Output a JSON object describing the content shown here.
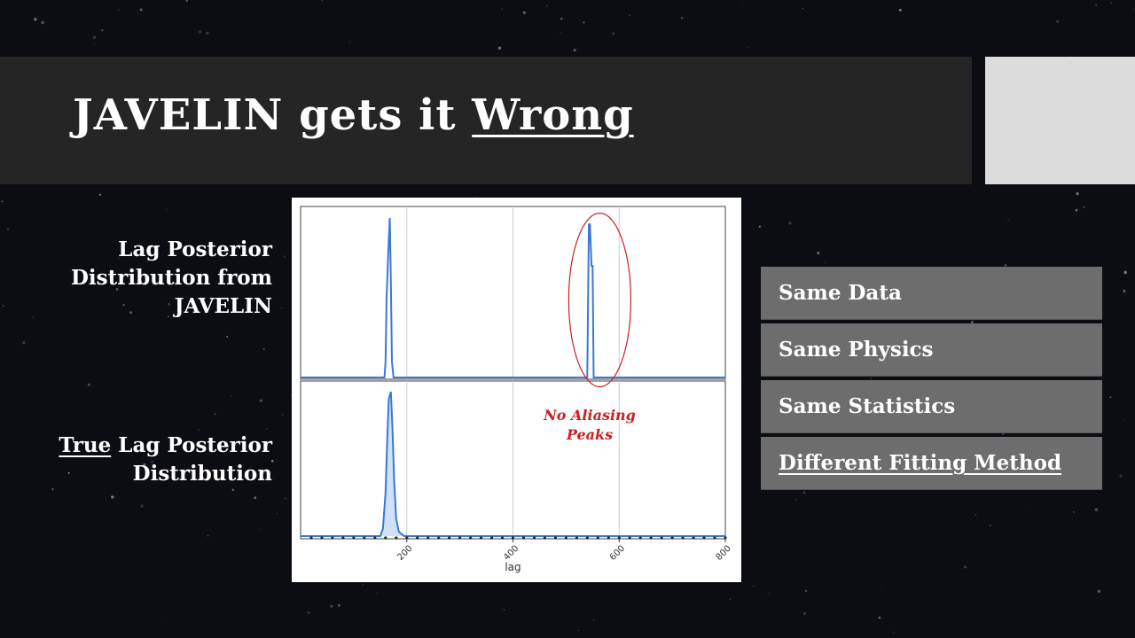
{
  "slide": {
    "title_plain": "JAVELIN gets it ",
    "title_underlined": "Wrong",
    "label_top": "Lag Posterior Distribution from JAVELIN",
    "label_bottom_underlined": "True",
    "label_bottom_rest": " Lag Posterior Distribution",
    "boxes": [
      {
        "label": "Same Data",
        "underlined": false
      },
      {
        "label": "Same Physics",
        "underlined": false
      },
      {
        "label": "Same Statistics",
        "underlined": false
      },
      {
        "label": "Different Fitting Method",
        "underlined": true
      }
    ]
  },
  "colors": {
    "accent_red": "#cc1f1f",
    "series_blue": "#3b78d4",
    "title_bar": "#252525",
    "box_gray": "#6d6d6d"
  },
  "chart_data": {
    "type": "line",
    "xlabel": "lag",
    "xlim": [
      0,
      800
    ],
    "xticks": [
      200,
      400,
      600,
      800
    ],
    "grid": true,
    "annotation": {
      "text_line1": "No Aliasing",
      "text_line2": "Peaks",
      "color": "#cc1f1f"
    },
    "top_panel": {
      "name": "",
      "x": [
        0,
        158,
        160,
        162,
        165,
        168,
        170,
        172,
        175,
        180,
        182,
        540,
        543,
        545,
        548,
        550,
        552,
        556,
        800
      ],
      "y": [
        0,
        0,
        0.1,
        0.5,
        0.78,
        1.0,
        0.6,
        0.1,
        0,
        0,
        0,
        0,
        0.96,
        0.96,
        0.7,
        0.7,
        0,
        0,
        0
      ],
      "ylim": [
        0,
        1.05
      ],
      "highlight_x_range": [
        505,
        622
      ]
    },
    "bottom_panel": {
      "name": "",
      "x": [
        0,
        150,
        155,
        160,
        163,
        166,
        170,
        173,
        176,
        180,
        185,
        195,
        800
      ],
      "y": [
        0,
        0,
        0.05,
        0.3,
        0.65,
        0.95,
        1.0,
        0.75,
        0.4,
        0.12,
        0.03,
        0,
        0
      ],
      "ylim": [
        0,
        1.05
      ],
      "dot_spacing": 20
    }
  }
}
